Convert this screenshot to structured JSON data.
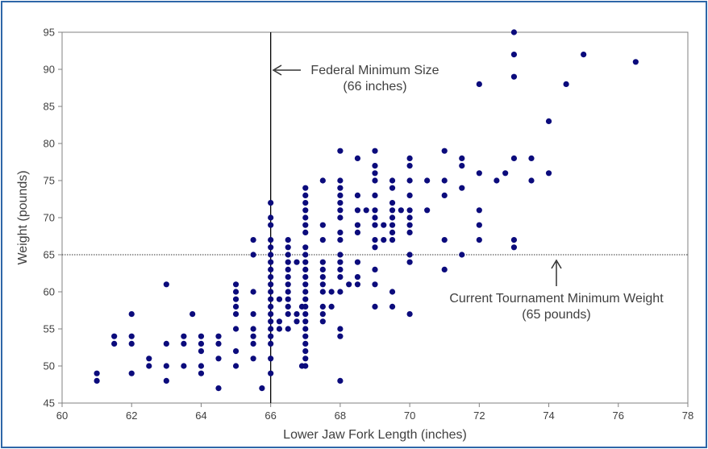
{
  "chart_data": {
    "type": "scatter",
    "title": "",
    "xlabel": "Lower Jaw Fork Length (inches)",
    "ylabel": "Weight (pounds)",
    "xlim": [
      60,
      78
    ],
    "ylim": [
      45,
      95
    ],
    "x_ticks": [
      "60",
      "62",
      "64",
      "66",
      "68",
      "70",
      "72",
      "74",
      "76",
      "78"
    ],
    "y_ticks": [
      "45",
      "50",
      "55",
      "60",
      "65",
      "70",
      "75",
      "80",
      "85",
      "90",
      "95"
    ],
    "grid": false,
    "point_color": "#0b0b7c",
    "reference_lines": [
      {
        "orientation": "vertical",
        "value": 66,
        "style": "solid"
      },
      {
        "orientation": "horizontal",
        "value": 65,
        "style": "dotted"
      }
    ],
    "annotations": [
      {
        "lines": [
          "Federal Minimum Size",
          "(66 inches)"
        ]
      },
      {
        "lines": [
          "Current Tournament Minimum Weight",
          "(65 pounds)"
        ]
      }
    ],
    "points": [
      [
        61,
        48
      ],
      [
        61,
        49
      ],
      [
        61.5,
        53
      ],
      [
        61.5,
        54
      ],
      [
        62,
        49
      ],
      [
        62,
        53
      ],
      [
        62,
        54
      ],
      [
        62,
        57
      ],
      [
        62.5,
        50
      ],
      [
        62.5,
        51
      ],
      [
        63,
        48
      ],
      [
        63,
        50
      ],
      [
        63,
        53
      ],
      [
        63,
        61
      ],
      [
        63.5,
        50
      ],
      [
        63.5,
        53
      ],
      [
        63.5,
        54
      ],
      [
        63.75,
        57
      ],
      [
        64,
        49
      ],
      [
        64,
        50
      ],
      [
        64,
        52
      ],
      [
        64,
        53
      ],
      [
        64,
        54
      ],
      [
        64.5,
        47
      ],
      [
        64.5,
        51
      ],
      [
        64.5,
        53
      ],
      [
        64.5,
        54
      ],
      [
        65,
        50
      ],
      [
        65,
        52
      ],
      [
        65,
        55
      ],
      [
        65,
        57
      ],
      [
        65,
        58
      ],
      [
        65,
        59
      ],
      [
        65,
        60
      ],
      [
        65,
        61
      ],
      [
        65.5,
        51
      ],
      [
        65.5,
        53
      ],
      [
        65.5,
        54
      ],
      [
        65.5,
        55
      ],
      [
        65.5,
        57
      ],
      [
        65.5,
        60
      ],
      [
        65.5,
        65
      ],
      [
        65.5,
        67
      ],
      [
        65.75,
        47
      ],
      [
        66,
        49
      ],
      [
        66,
        51
      ],
      [
        66,
        53
      ],
      [
        66,
        54
      ],
      [
        66,
        55
      ],
      [
        66,
        56
      ],
      [
        66,
        57
      ],
      [
        66,
        58
      ],
      [
        66,
        59
      ],
      [
        66,
        60
      ],
      [
        66,
        61
      ],
      [
        66,
        62
      ],
      [
        66,
        63
      ],
      [
        66,
        64
      ],
      [
        66,
        65
      ],
      [
        66,
        66
      ],
      [
        66,
        67
      ],
      [
        66,
        69
      ],
      [
        66,
        70
      ],
      [
        66,
        72
      ],
      [
        66.5,
        55
      ],
      [
        66.5,
        57
      ],
      [
        66.5,
        58
      ],
      [
        66.5,
        59
      ],
      [
        66.5,
        60
      ],
      [
        66.5,
        61
      ],
      [
        66.5,
        62
      ],
      [
        66.5,
        63
      ],
      [
        66.5,
        64
      ],
      [
        66.5,
        65
      ],
      [
        66.5,
        66
      ],
      [
        66.5,
        67
      ],
      [
        66.25,
        55
      ],
      [
        66.25,
        56
      ],
      [
        66.25,
        59
      ],
      [
        66.75,
        56
      ],
      [
        66.75,
        57
      ],
      [
        66.75,
        64
      ],
      [
        66.9,
        58
      ],
      [
        66.9,
        50
      ],
      [
        67,
        50
      ],
      [
        67,
        51
      ],
      [
        67,
        52
      ],
      [
        67,
        53
      ],
      [
        67,
        54
      ],
      [
        67,
        55
      ],
      [
        67,
        56
      ],
      [
        67,
        57
      ],
      [
        67,
        58
      ],
      [
        67,
        59
      ],
      [
        67,
        60
      ],
      [
        67,
        61
      ],
      [
        67,
        62
      ],
      [
        67,
        63
      ],
      [
        67,
        64
      ],
      [
        67,
        65
      ],
      [
        67,
        66
      ],
      [
        67,
        68
      ],
      [
        67,
        69
      ],
      [
        67,
        70
      ],
      [
        67,
        71
      ],
      [
        67,
        72
      ],
      [
        67,
        73
      ],
      [
        67,
        74
      ],
      [
        67.5,
        56
      ],
      [
        67.5,
        57
      ],
      [
        67.5,
        58
      ],
      [
        67.5,
        60
      ],
      [
        67.5,
        61
      ],
      [
        67.5,
        62
      ],
      [
        67.5,
        63
      ],
      [
        67.5,
        64
      ],
      [
        67.5,
        67
      ],
      [
        67.5,
        69
      ],
      [
        67.5,
        75
      ],
      [
        67.75,
        58
      ],
      [
        67.75,
        60
      ],
      [
        68,
        48
      ],
      [
        68,
        54
      ],
      [
        68,
        55
      ],
      [
        68,
        60
      ],
      [
        68,
        62
      ],
      [
        68,
        63
      ],
      [
        68,
        64
      ],
      [
        68,
        65
      ],
      [
        68,
        67
      ],
      [
        68,
        68
      ],
      [
        68,
        70
      ],
      [
        68,
        71
      ],
      [
        68,
        72
      ],
      [
        68,
        73
      ],
      [
        68,
        74
      ],
      [
        68,
        75
      ],
      [
        68,
        79
      ],
      [
        68.25,
        61
      ],
      [
        68.5,
        61
      ],
      [
        68.5,
        62
      ],
      [
        68.5,
        64
      ],
      [
        68.5,
        68
      ],
      [
        68.5,
        69
      ],
      [
        68.5,
        71
      ],
      [
        68.5,
        73
      ],
      [
        68.5,
        78
      ],
      [
        68.75,
        71
      ],
      [
        69,
        58
      ],
      [
        69,
        61
      ],
      [
        69,
        63
      ],
      [
        69,
        66
      ],
      [
        69,
        67
      ],
      [
        69,
        69
      ],
      [
        69,
        70
      ],
      [
        69,
        71
      ],
      [
        69,
        73
      ],
      [
        69,
        75
      ],
      [
        69,
        76
      ],
      [
        69,
        77
      ],
      [
        69,
        79
      ],
      [
        69.25,
        67
      ],
      [
        69.25,
        69
      ],
      [
        69.5,
        58
      ],
      [
        69.5,
        60
      ],
      [
        69.5,
        67
      ],
      [
        69.5,
        68
      ],
      [
        69.5,
        69
      ],
      [
        69.5,
        70
      ],
      [
        69.5,
        71
      ],
      [
        69.5,
        72
      ],
      [
        69.5,
        74
      ],
      [
        69.5,
        75
      ],
      [
        69.75,
        71
      ],
      [
        70,
        57
      ],
      [
        70,
        64
      ],
      [
        70,
        65
      ],
      [
        70,
        68
      ],
      [
        70,
        69
      ],
      [
        70,
        70
      ],
      [
        70,
        71
      ],
      [
        70,
        73
      ],
      [
        70,
        75
      ],
      [
        70,
        77
      ],
      [
        70,
        78
      ],
      [
        70.5,
        71
      ],
      [
        70.5,
        75
      ],
      [
        71,
        63
      ],
      [
        71,
        67
      ],
      [
        71,
        73
      ],
      [
        71,
        75
      ],
      [
        71,
        79
      ],
      [
        71.5,
        65
      ],
      [
        71.5,
        74
      ],
      [
        71.5,
        77
      ],
      [
        71.5,
        78
      ],
      [
        72,
        67
      ],
      [
        72,
        69
      ],
      [
        72,
        71
      ],
      [
        72,
        76
      ],
      [
        72,
        88
      ],
      [
        72.5,
        75
      ],
      [
        72.75,
        76
      ],
      [
        73,
        66
      ],
      [
        73,
        67
      ],
      [
        73,
        78
      ],
      [
        73,
        89
      ],
      [
        73,
        92
      ],
      [
        73,
        95
      ],
      [
        73.5,
        75
      ],
      [
        73.5,
        78
      ],
      [
        74,
        76
      ],
      [
        74,
        83
      ],
      [
        74.5,
        88
      ],
      [
        75,
        92
      ],
      [
        76.5,
        91
      ]
    ]
  }
}
